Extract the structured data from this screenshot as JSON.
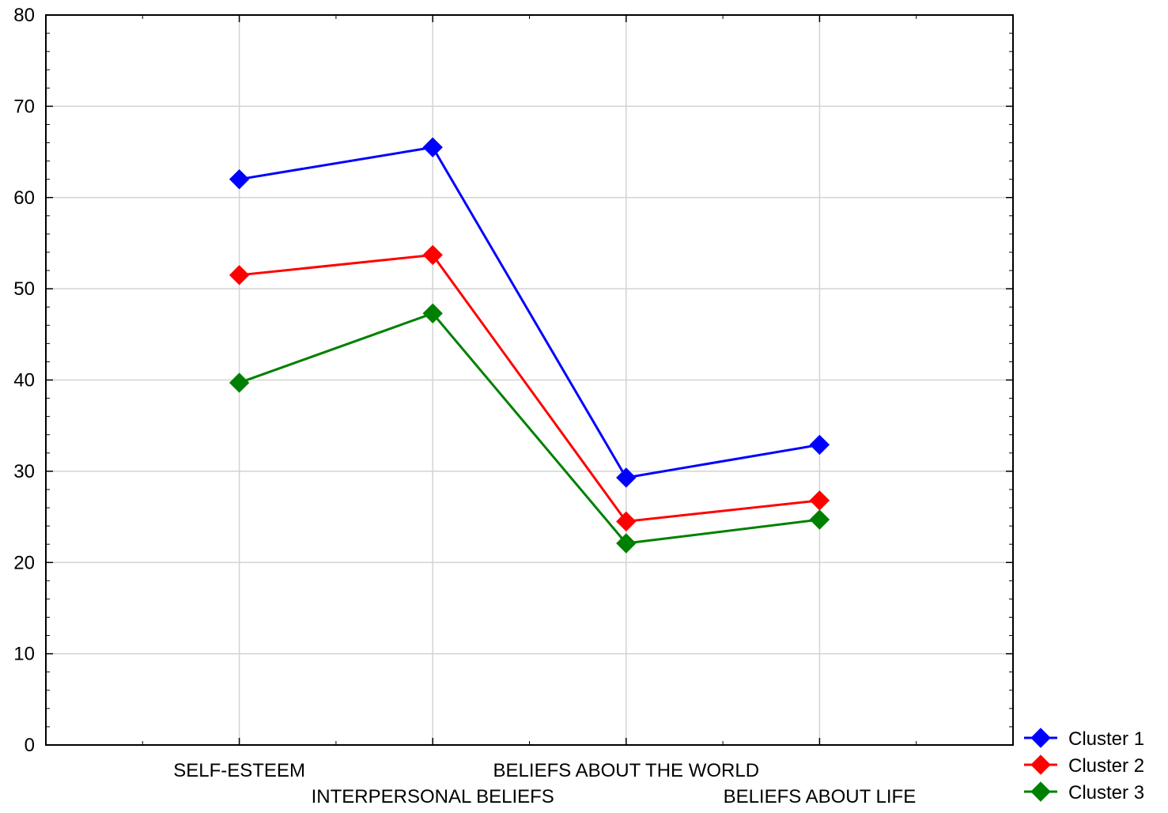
{
  "chart_data": {
    "type": "line",
    "title": "",
    "xlabel": "",
    "ylabel": "",
    "categories": [
      "SELF-ESTEEM",
      "INTERPERSONAL BELIEFS",
      "BELIEFS ABOUT THE WORLD",
      "BELIEFS ABOUT LIFE"
    ],
    "ylim": [
      0,
      80
    ],
    "yticks": [
      0,
      10,
      20,
      30,
      40,
      50,
      60,
      70,
      80
    ],
    "grid": true,
    "legend_position": "bottom-right, outside plot",
    "marker": "diamond",
    "series": [
      {
        "name": "Cluster 1",
        "color": "#0000ff",
        "values": [
          62.0,
          65.5,
          29.3,
          32.9
        ]
      },
      {
        "name": "Cluster 2",
        "color": "#ff0000",
        "values": [
          51.5,
          53.7,
          24.5,
          26.8
        ]
      },
      {
        "name": "Cluster 3",
        "color": "#008000",
        "values": [
          39.7,
          47.3,
          22.1,
          24.7
        ]
      }
    ]
  }
}
